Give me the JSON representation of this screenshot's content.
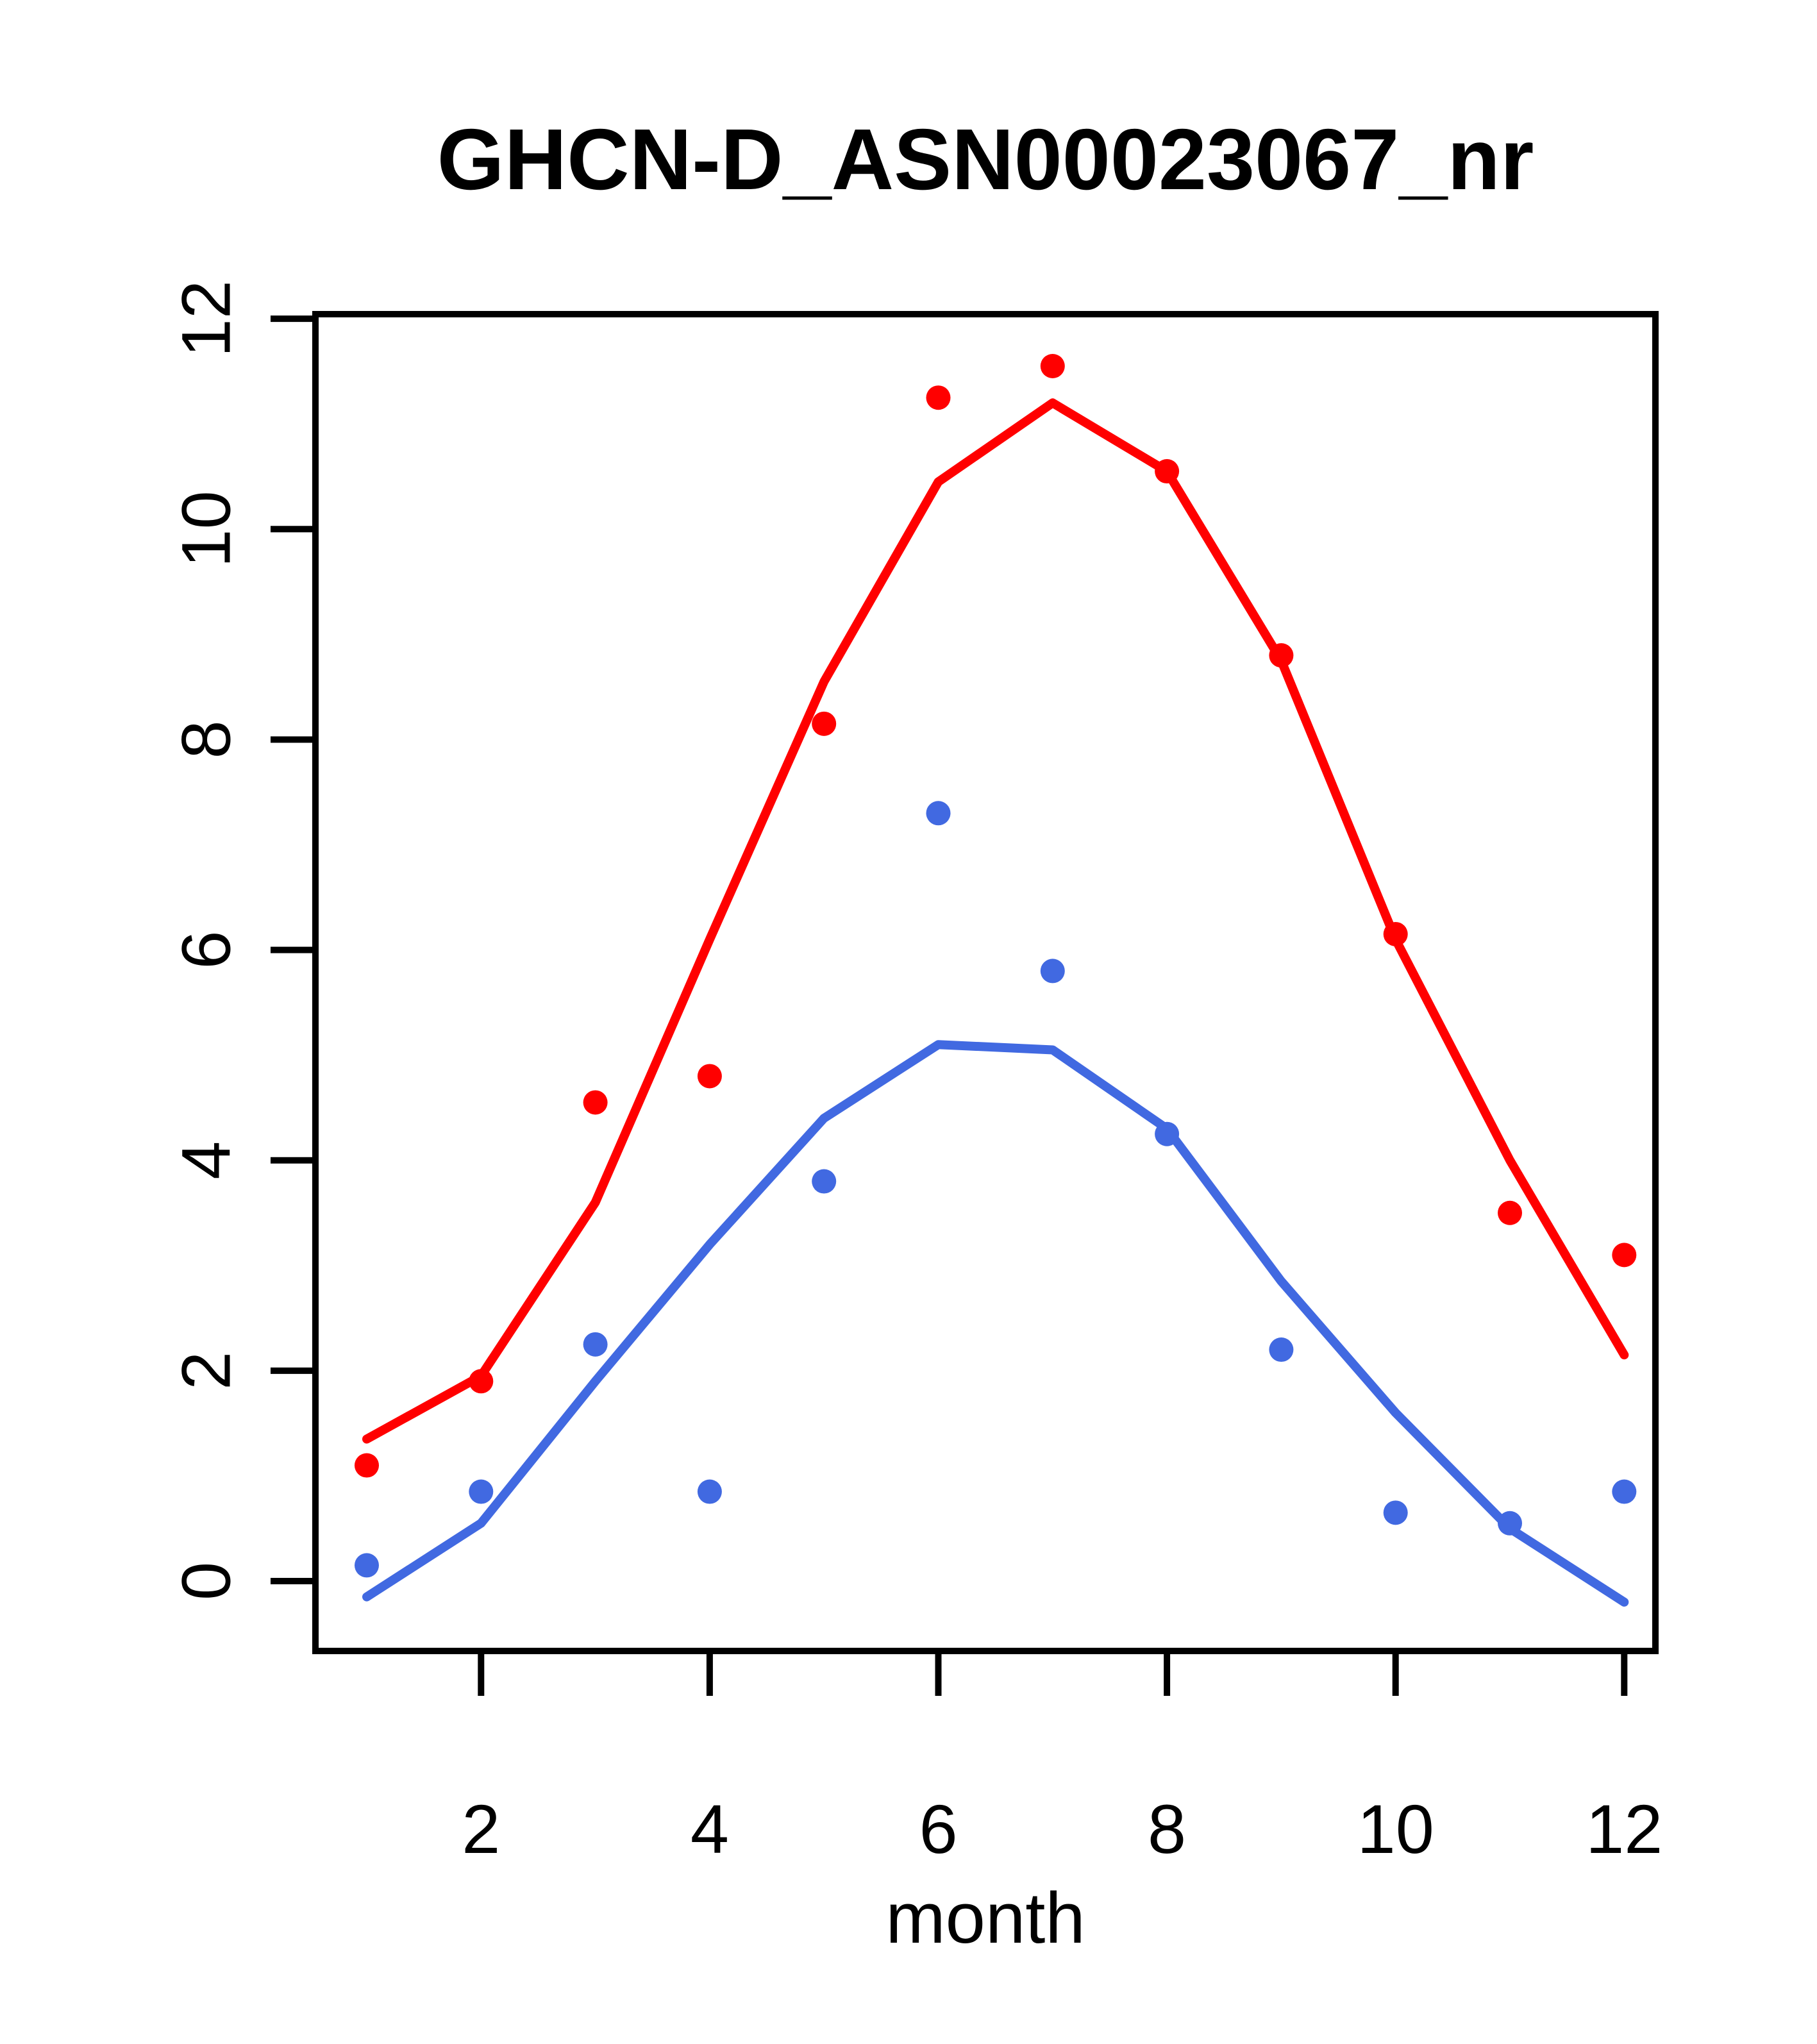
{
  "chart_data": {
    "type": "line",
    "title": "GHCN-D_ASN00023067_nr",
    "xlabel": "month",
    "ylabel": "",
    "x": [
      1,
      2,
      3,
      4,
      5,
      6,
      7,
      8,
      9,
      10,
      11,
      12
    ],
    "x_ticks": [
      2,
      4,
      6,
      8,
      10,
      12
    ],
    "y_ticks": [
      0,
      2,
      4,
      6,
      8,
      10,
      12
    ],
    "xlim": [
      0.55,
      12.27
    ],
    "ylim": [
      -0.66,
      12.04
    ],
    "grid": false,
    "legend": "none",
    "colors": {
      "red_series": "#FF0000",
      "blue_series": "#4169E1",
      "axis": "#000000",
      "background": "#FFFFFF"
    },
    "series": [
      {
        "name": "red-points",
        "type": "points",
        "color": "#FF0000",
        "values": [
          1.1,
          1.9,
          4.55,
          4.8,
          8.15,
          11.25,
          11.55,
          10.55,
          8.8,
          6.15,
          3.5,
          3.1
        ]
      },
      {
        "name": "red-line",
        "type": "line",
        "color": "#FF0000",
        "values": [
          1.35,
          1.95,
          3.6,
          6.1,
          8.55,
          10.45,
          11.2,
          10.55,
          8.75,
          6.1,
          4.0,
          2.15
        ]
      },
      {
        "name": "blue-points",
        "type": "points",
        "color": "#4169E1",
        "values": [
          0.15,
          0.85,
          2.25,
          0.85,
          3.8,
          7.3,
          5.8,
          4.25,
          2.2,
          0.65,
          0.55,
          0.85
        ]
      },
      {
        "name": "blue-line",
        "type": "line",
        "color": "#4169E1",
        "values": [
          -0.15,
          0.55,
          1.9,
          3.2,
          4.4,
          5.1,
          5.05,
          4.3,
          2.85,
          1.6,
          0.5,
          -0.2
        ]
      }
    ]
  }
}
